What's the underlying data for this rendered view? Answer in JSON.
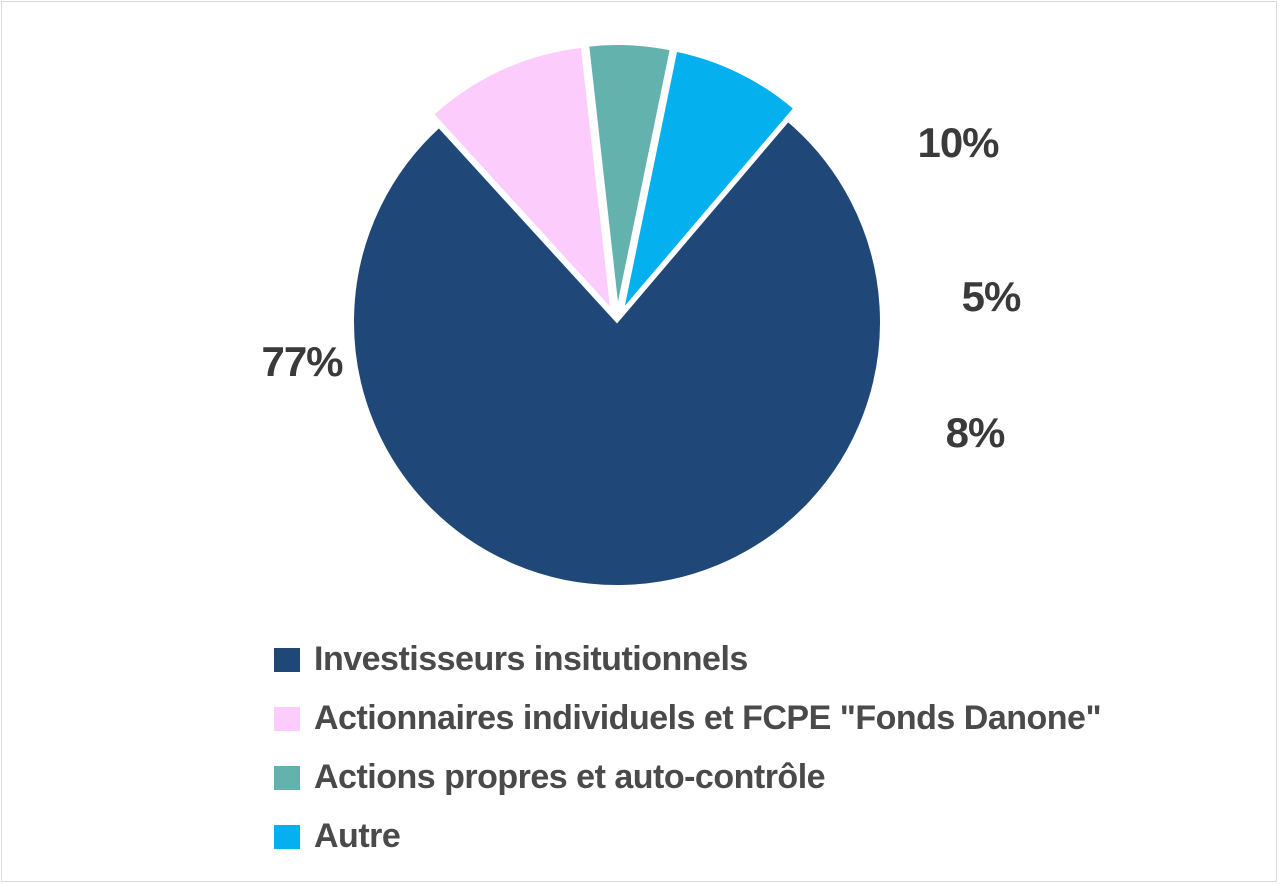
{
  "chart_data": {
    "type": "pie",
    "slices": [
      {
        "name": "Investisseurs insitutionnels",
        "value": 77,
        "label": "77%",
        "color": "#1f4878",
        "exploded": false
      },
      {
        "name": "Actionnaires individuels et FCPE \"Fonds Danone\"",
        "value": 10,
        "label": "10%",
        "color": "#fccdfc",
        "exploded": true
      },
      {
        "name": "Actions propres et auto-contrôle",
        "value": 5,
        "label": "5%",
        "color": "#63b2ae",
        "exploded": true
      },
      {
        "name": "Autre",
        "value": 8,
        "label": "8%",
        "color": "#05b0ef",
        "exploded": true
      }
    ],
    "legend_position": "bottom"
  }
}
